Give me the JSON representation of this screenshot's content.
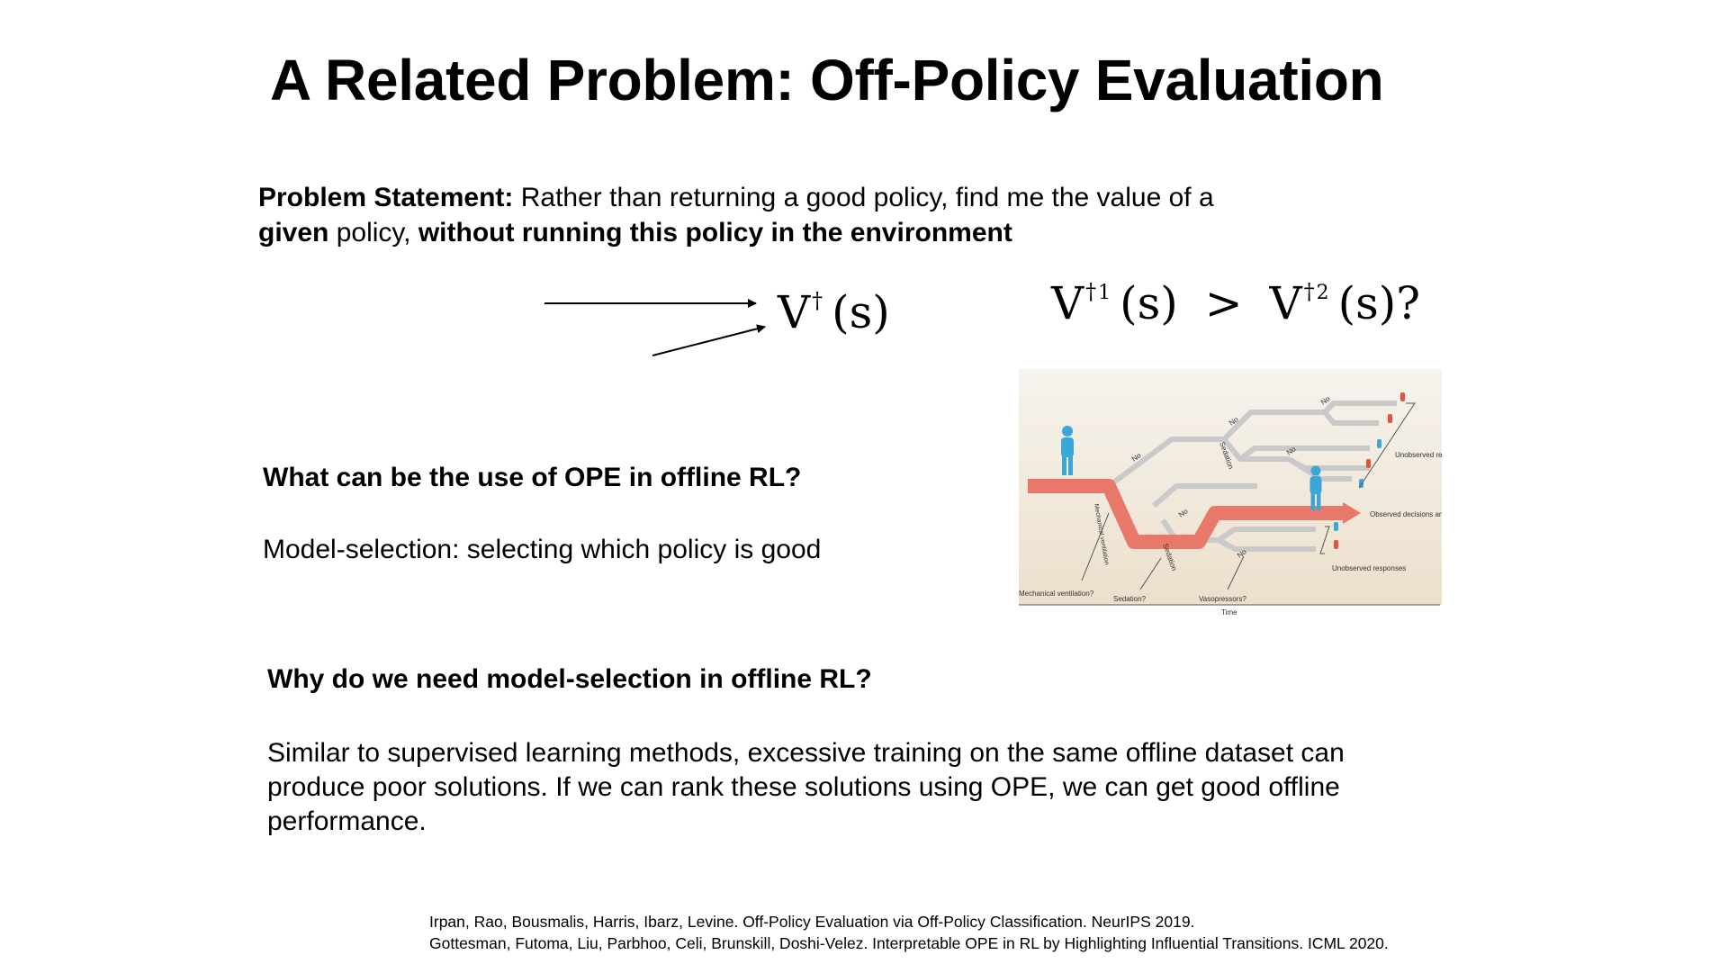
{
  "slide": {
    "title": "A Related Problem: Off-Policy Evaluation",
    "problem_statement": {
      "label": "Problem Statement:",
      "text1": " Rather than returning a good policy, find me the value of a",
      "given": "given",
      "text2": " policy, ",
      "without": "without running this policy in the environment"
    },
    "math": {
      "value_fn_v": "V",
      "value_fn_pi": "†",
      "value_fn_arg": "(s)",
      "compare_v": "V",
      "compare_pi": "†",
      "compare_sub1": "1",
      "compare_arg1": "(s)",
      "compare_op": ">",
      "compare_sub2": "2",
      "compare_arg2": "(s)?"
    },
    "q1": "What can be the use of OPE in offline RL?",
    "a1": "Model-selection: selecting which policy is good",
    "q2": "Why do we need model-selection in offline RL?",
    "a2": "Similar to supervised learning methods, excessive training on the same offline dataset can produce poor solutions. If we can rank these solutions using OPE, we can get good offline performance.",
    "references": [
      "Irpan, Rao, Bousmalis, Harris, Ibarz, Levine. Off-Policy Evaluation via Off-Policy Classification. NeurIPS 2019.",
      "Gottesman, Futoma, Liu, Parbhoo, Celi, Brunskill, Doshi-Velez. Interpretable OPE in RL by Highlighting Influential Transitions. ICML 2020."
    ]
  },
  "diagram": {
    "labels": {
      "mech_vent_branch": "Mechanical ventilation",
      "sedation_1": "Sedation",
      "sedation_2": "Sedation",
      "no": "No",
      "unobserved": "Unobserved responses",
      "observed": "Observed decisions and response",
      "q_mech": "Mechanical ventilation?",
      "q_sed": "Sedation?",
      "q_vaso": "Vasopressors?",
      "time": "Time"
    },
    "colors": {
      "observed_path": "#e8786a",
      "unobserved_path": "#c9c9c9",
      "person_blue": "#3aa7d8",
      "person_red": "#e0533f",
      "background_top": "#f6f3ee",
      "background_bottom": "#ece0cc"
    }
  }
}
